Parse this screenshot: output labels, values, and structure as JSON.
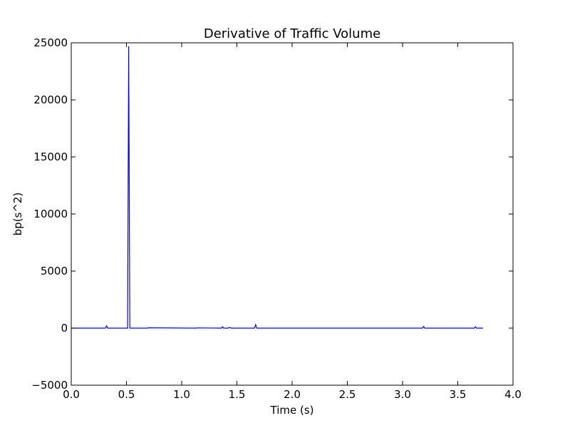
{
  "chart_data": {
    "type": "line",
    "title": "Derivative of Traffic Volume",
    "xlabel": "Time (s)",
    "ylabel": "bp(s^2)",
    "xlim": [
      0.0,
      4.0
    ],
    "ylim": [
      -5000,
      25000
    ],
    "x_ticks": [
      "0.0",
      "0.5",
      "1.0",
      "1.5",
      "2.0",
      "2.5",
      "3.0",
      "3.5",
      "4.0"
    ],
    "y_ticks": [
      "−5000",
      "0",
      "5000",
      "10000",
      "15000",
      "20000",
      "25000"
    ],
    "grid": false,
    "legend": "none",
    "line_color": "#0000ff",
    "series": [
      {
        "x": [
          0.0,
          0.31,
          0.32,
          0.33,
          0.5,
          0.51,
          0.52,
          0.53,
          0.55,
          0.69,
          0.7,
          1.13,
          1.14,
          1.36,
          1.37,
          1.38,
          1.42,
          1.43,
          1.45,
          1.66,
          1.67,
          1.68,
          3.18,
          3.19,
          3.2,
          3.65,
          3.66,
          3.67,
          3.73
        ],
        "y": [
          0,
          0,
          200,
          0,
          0,
          0,
          24700,
          0,
          0,
          0,
          30,
          0,
          20,
          0,
          120,
          0,
          0,
          60,
          0,
          0,
          300,
          0,
          0,
          150,
          0,
          0,
          120,
          0,
          0
        ]
      }
    ]
  }
}
